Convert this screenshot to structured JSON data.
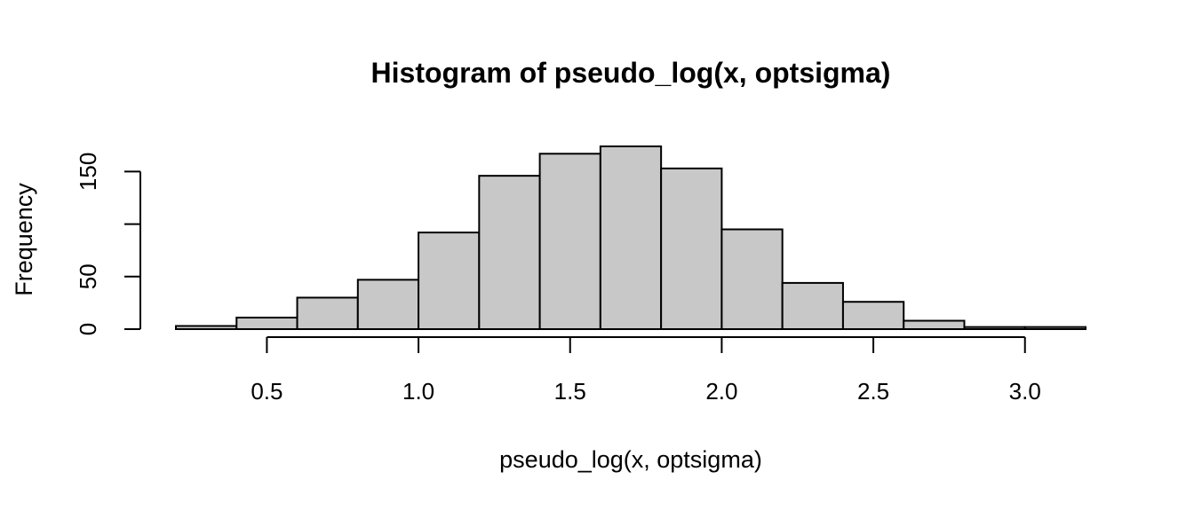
{
  "chart_data": {
    "type": "bar",
    "title": "Histogram of pseudo_log(x, optsigma)",
    "xlabel": "pseudo_log(x, optsigma)",
    "ylabel": "Frequency",
    "bins": [
      {
        "start": 0.2,
        "end": 0.4,
        "count": 3
      },
      {
        "start": 0.4,
        "end": 0.6,
        "count": 11
      },
      {
        "start": 0.6,
        "end": 0.8,
        "count": 30
      },
      {
        "start": 0.8,
        "end": 1.0,
        "count": 47
      },
      {
        "start": 1.0,
        "end": 1.2,
        "count": 92
      },
      {
        "start": 1.2,
        "end": 1.4,
        "count": 146
      },
      {
        "start": 1.4,
        "end": 1.6,
        "count": 167
      },
      {
        "start": 1.6,
        "end": 1.8,
        "count": 174
      },
      {
        "start": 1.8,
        "end": 2.0,
        "count": 153
      },
      {
        "start": 2.0,
        "end": 2.2,
        "count": 95
      },
      {
        "start": 2.2,
        "end": 2.4,
        "count": 44
      },
      {
        "start": 2.4,
        "end": 2.6,
        "count": 26
      },
      {
        "start": 2.6,
        "end": 2.8,
        "count": 8
      },
      {
        "start": 2.8,
        "end": 3.0,
        "count": 2
      },
      {
        "start": 3.0,
        "end": 3.2,
        "count": 2
      }
    ],
    "x_ticks": [
      "0.5",
      "1.0",
      "1.5",
      "2.0",
      "2.5",
      "3.0"
    ],
    "x_tick_values": [
      0.5,
      1.0,
      1.5,
      2.0,
      2.5,
      3.0
    ],
    "y_ticks": [
      "0",
      "50",
      "150"
    ],
    "y_tick_values": [
      0,
      50,
      100,
      150
    ],
    "xlim": [
      0.2,
      3.2
    ],
    "ylim": [
      0,
      174
    ],
    "bar_color": "#c8c8c8",
    "grid": false
  }
}
